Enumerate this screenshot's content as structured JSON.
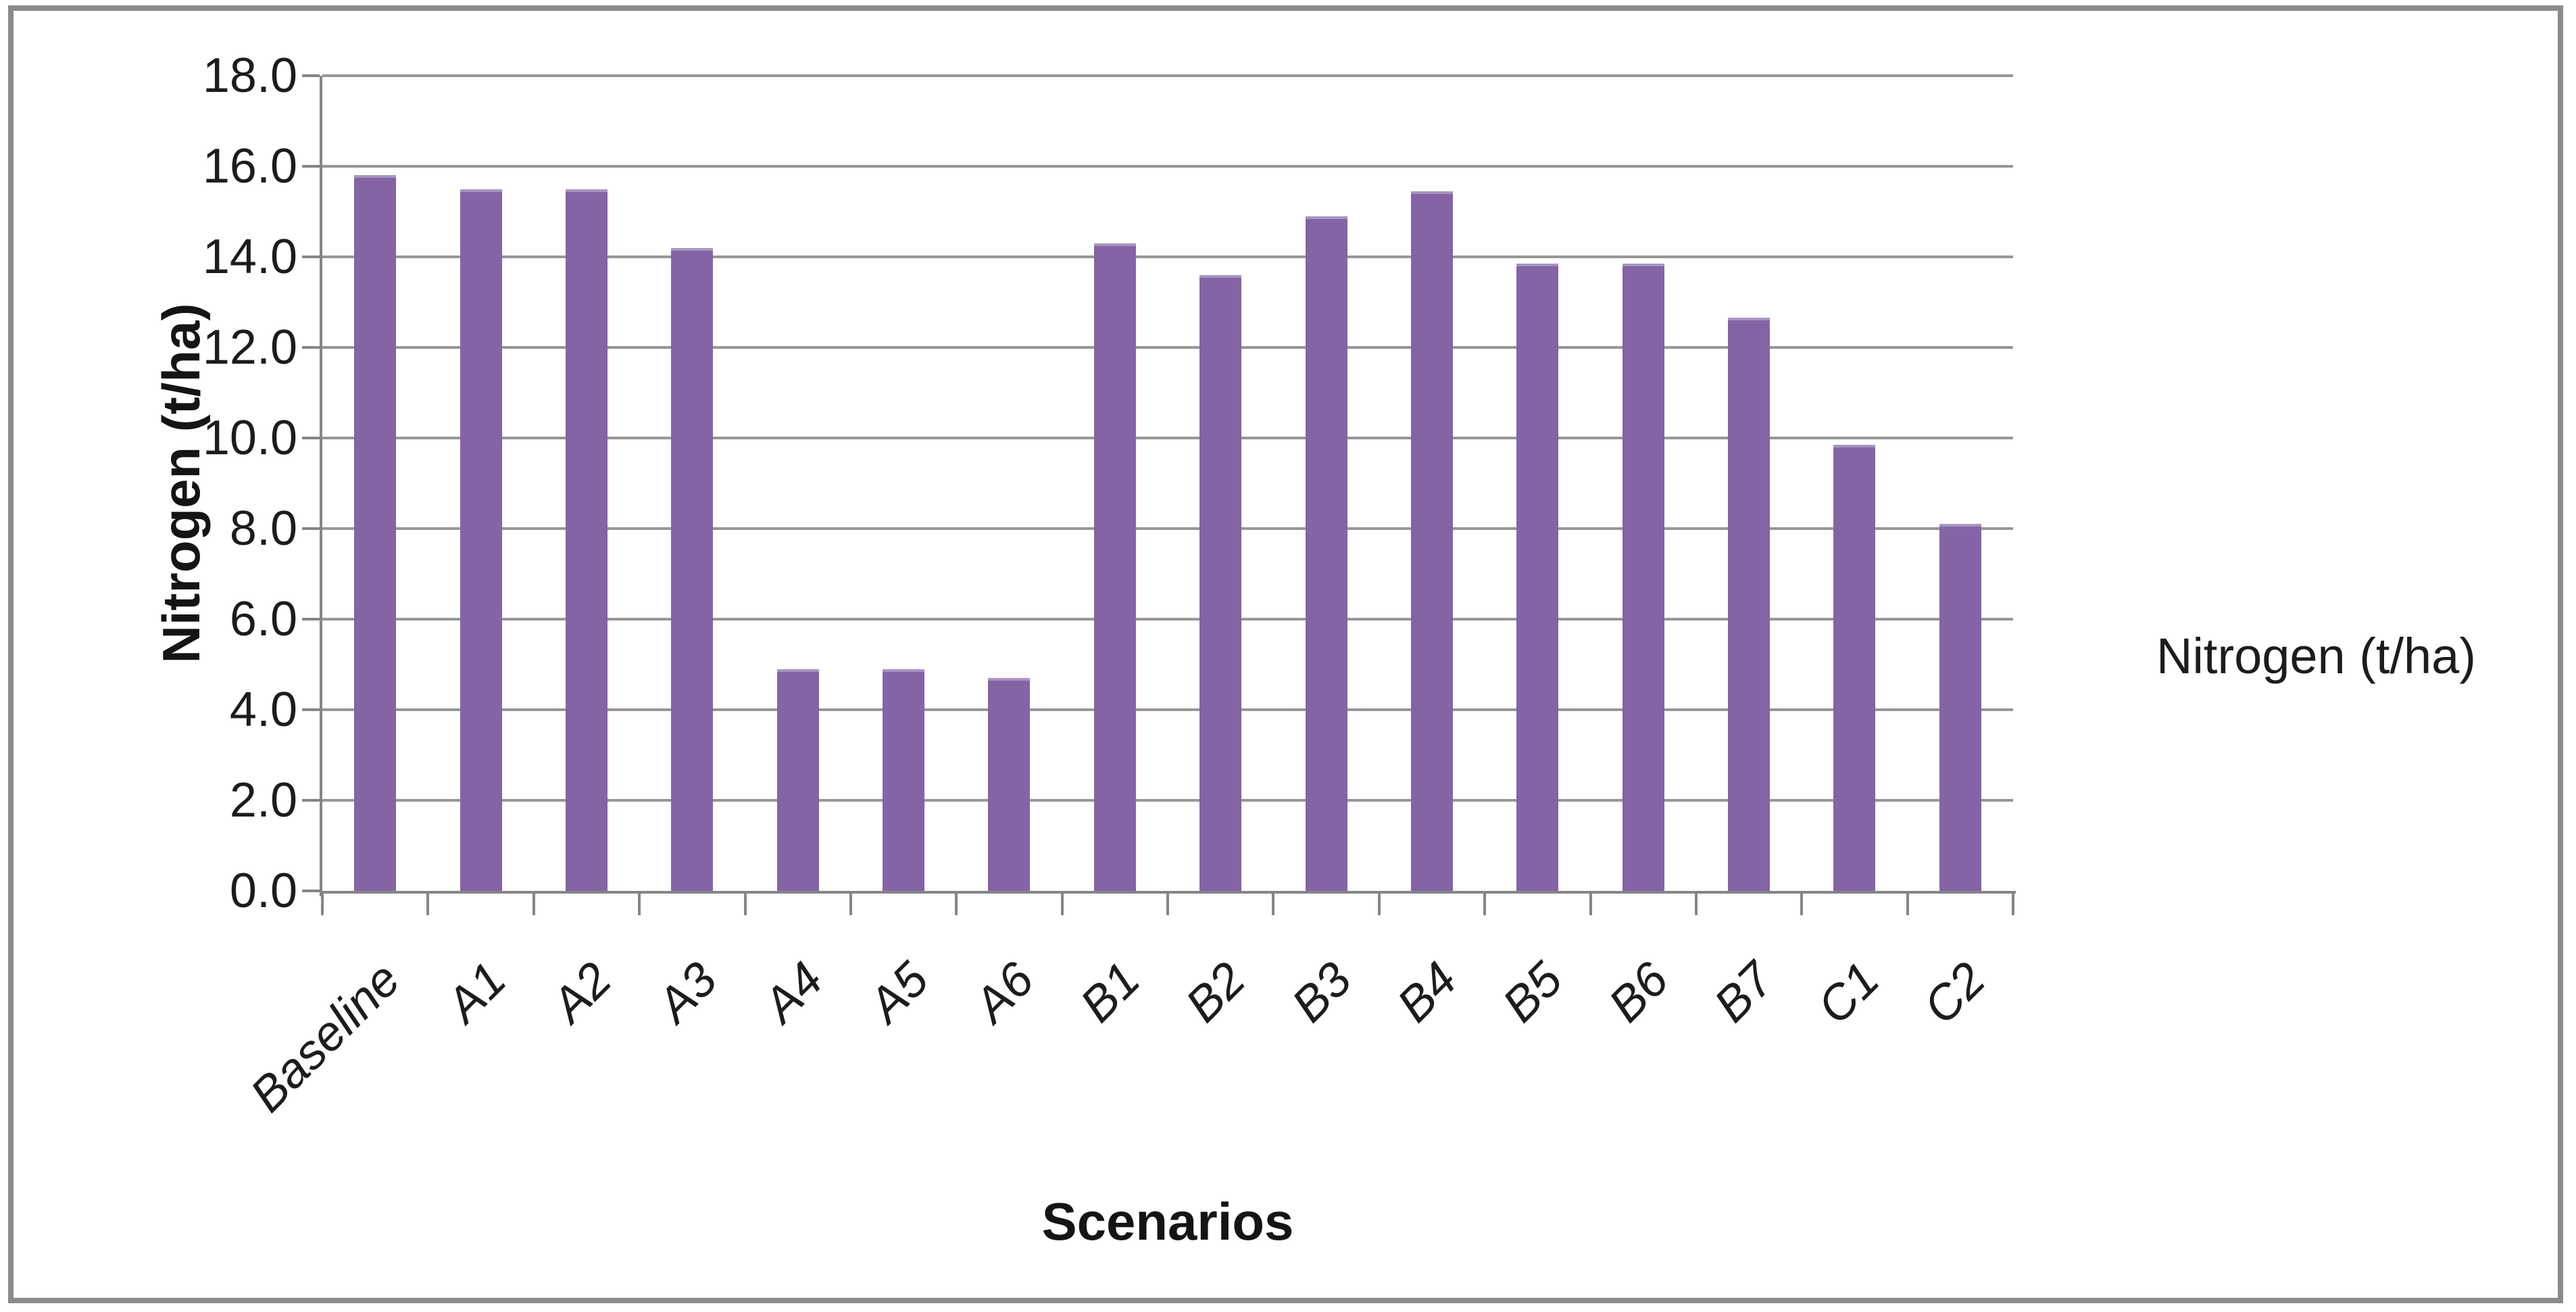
{
  "chart_data": {
    "type": "bar",
    "title": "",
    "categories": [
      "Baseline",
      "A1",
      "A2",
      "A3",
      "A4",
      "A5",
      "A6",
      "B1",
      "B2",
      "B3",
      "B4",
      "B5",
      "B6",
      "B7",
      "C1",
      "C2"
    ],
    "values": [
      15.8,
      15.5,
      15.5,
      14.2,
      4.9,
      4.9,
      4.7,
      14.3,
      13.6,
      14.9,
      15.45,
      13.85,
      13.85,
      12.65,
      9.85,
      8.1
    ],
    "series_name": "Nitrogen (t/ha)",
    "xlabel": "Scenarios",
    "ylabel": "Nitrogen (t/ha)",
    "ylim": [
      0,
      18
    ],
    "ytick_step": 2,
    "ytick_labels": [
      "0.0",
      "2.0",
      "4.0",
      "6.0",
      "8.0",
      "10.0",
      "12.0",
      "14.0",
      "16.0",
      "18.0"
    ],
    "grid": true,
    "legend_position": "right",
    "bar_color": "#8464A4",
    "bar_top_edge_color": "#a795c1",
    "gridline_color": "#979797",
    "axis_color": "#858585",
    "text_color": "#1c1c1c"
  },
  "axes": {
    "y_title": "Nitrogen (t/ha)",
    "x_title": "Scenarios"
  },
  "legend": {
    "label": "Nitrogen (t/ha)",
    "swatch_color": "#8464A4"
  }
}
